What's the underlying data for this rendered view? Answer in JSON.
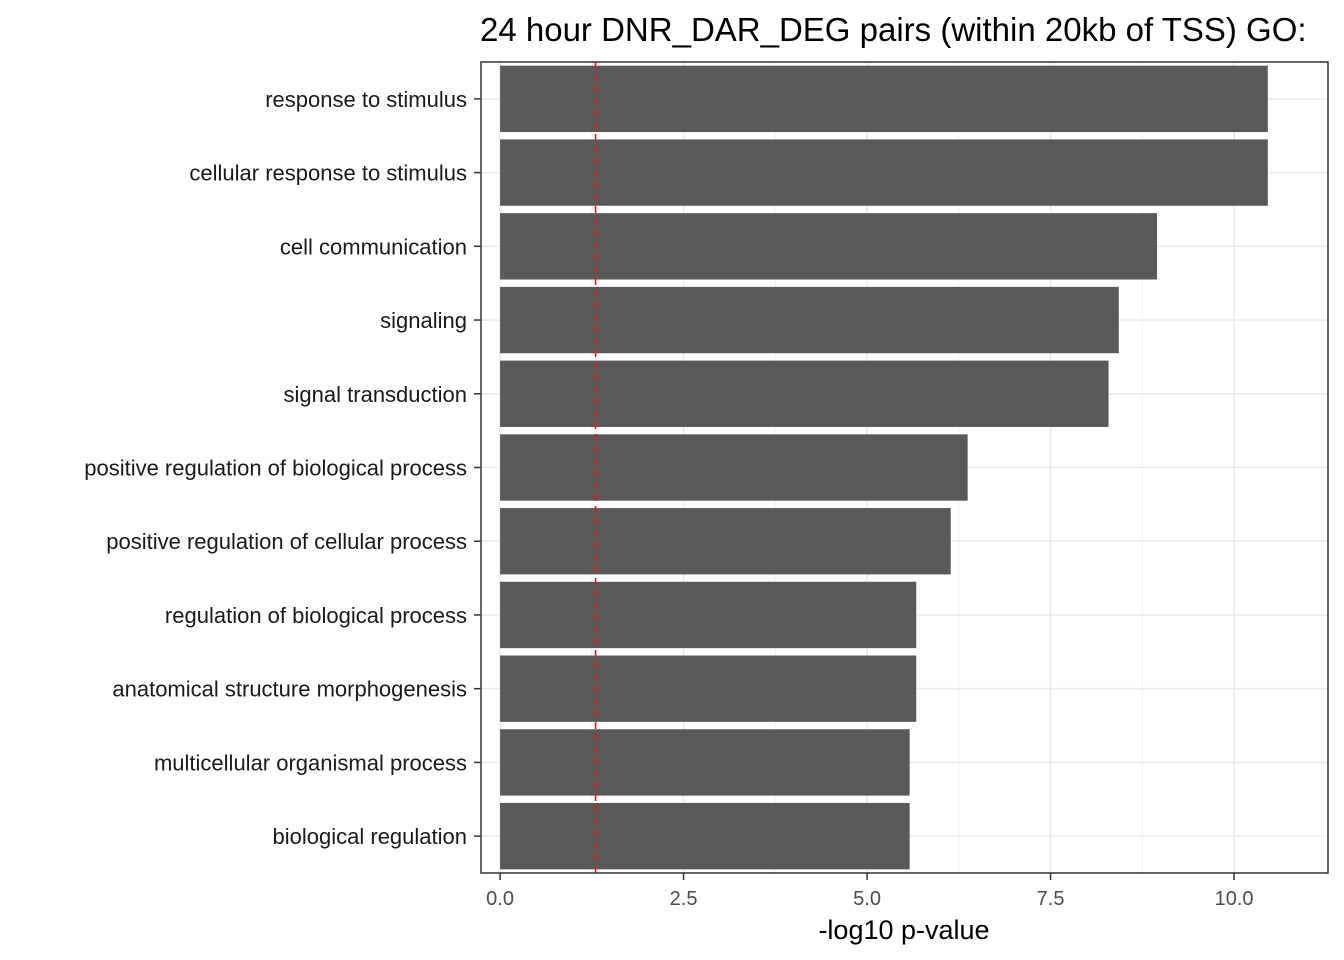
{
  "chart_data": {
    "type": "bar",
    "orientation": "horizontal",
    "title": "24 hour DNR_DAR_DEG pairs (within 20kb of TSS) GO:",
    "xlabel": "-log10 p-value",
    "ylabel": "",
    "xlim": [
      -0.26,
      11.28
    ],
    "x_ticks": [
      0.0,
      2.5,
      5.0,
      7.5,
      10.0
    ],
    "x_tick_labels": [
      "0.0",
      "2.5",
      "5.0",
      "7.5",
      "10.0"
    ],
    "threshold_line": {
      "value": 1.301,
      "style": "dashed",
      "color": "#e31a1c"
    },
    "bar_color": "#595959",
    "grid": true,
    "legend": "none",
    "categories": [
      "response to stimulus",
      "cellular response to stimulus",
      "cell communication",
      "signaling",
      "signal transduction",
      "positive regulation of biological process",
      "positive regulation of cellular process",
      "regulation of biological process",
      "anatomical structure morphogenesis",
      "multicellular organismal process",
      "biological regulation"
    ],
    "values": [
      10.46,
      10.46,
      8.95,
      8.43,
      8.29,
      6.37,
      6.14,
      5.67,
      5.67,
      5.58,
      5.58
    ]
  }
}
